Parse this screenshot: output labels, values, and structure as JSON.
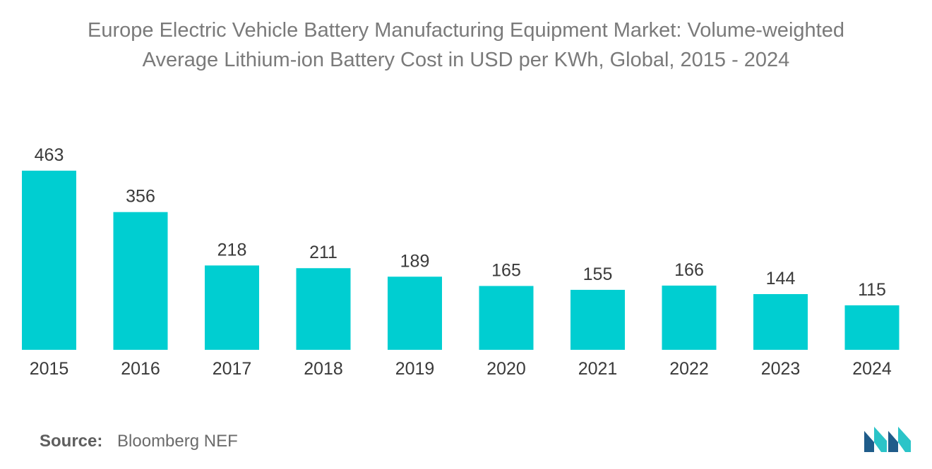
{
  "colors": {
    "bar": "#00CED1",
    "title": "#7a7a7a",
    "text": "#3a3a3a",
    "logo_dark": "#1f5c8a",
    "logo_light": "#2bc4c8"
  },
  "chart_data": {
    "type": "bar",
    "title_line1": "Europe Electric Vehicle Battery Manufacturing Equipment Market: Volume-weighted",
    "title_line2": "Average Lithium-ion Battery Cost in USD per KWh, Global, 2015 - 2024",
    "categories": [
      "2015",
      "2016",
      "2017",
      "2018",
      "2019",
      "2020",
      "2021",
      "2022",
      "2023",
      "2024"
    ],
    "values": [
      463,
      356,
      218,
      211,
      189,
      165,
      155,
      166,
      144,
      115
    ],
    "xlabel": "",
    "ylabel": "",
    "ylim": [
      0,
      463
    ],
    "grid": false,
    "legend": "none"
  },
  "source": {
    "label": "Source:",
    "text": "Bloomberg NEF"
  },
  "logo": {
    "icon": "mordor-logo-icon"
  }
}
